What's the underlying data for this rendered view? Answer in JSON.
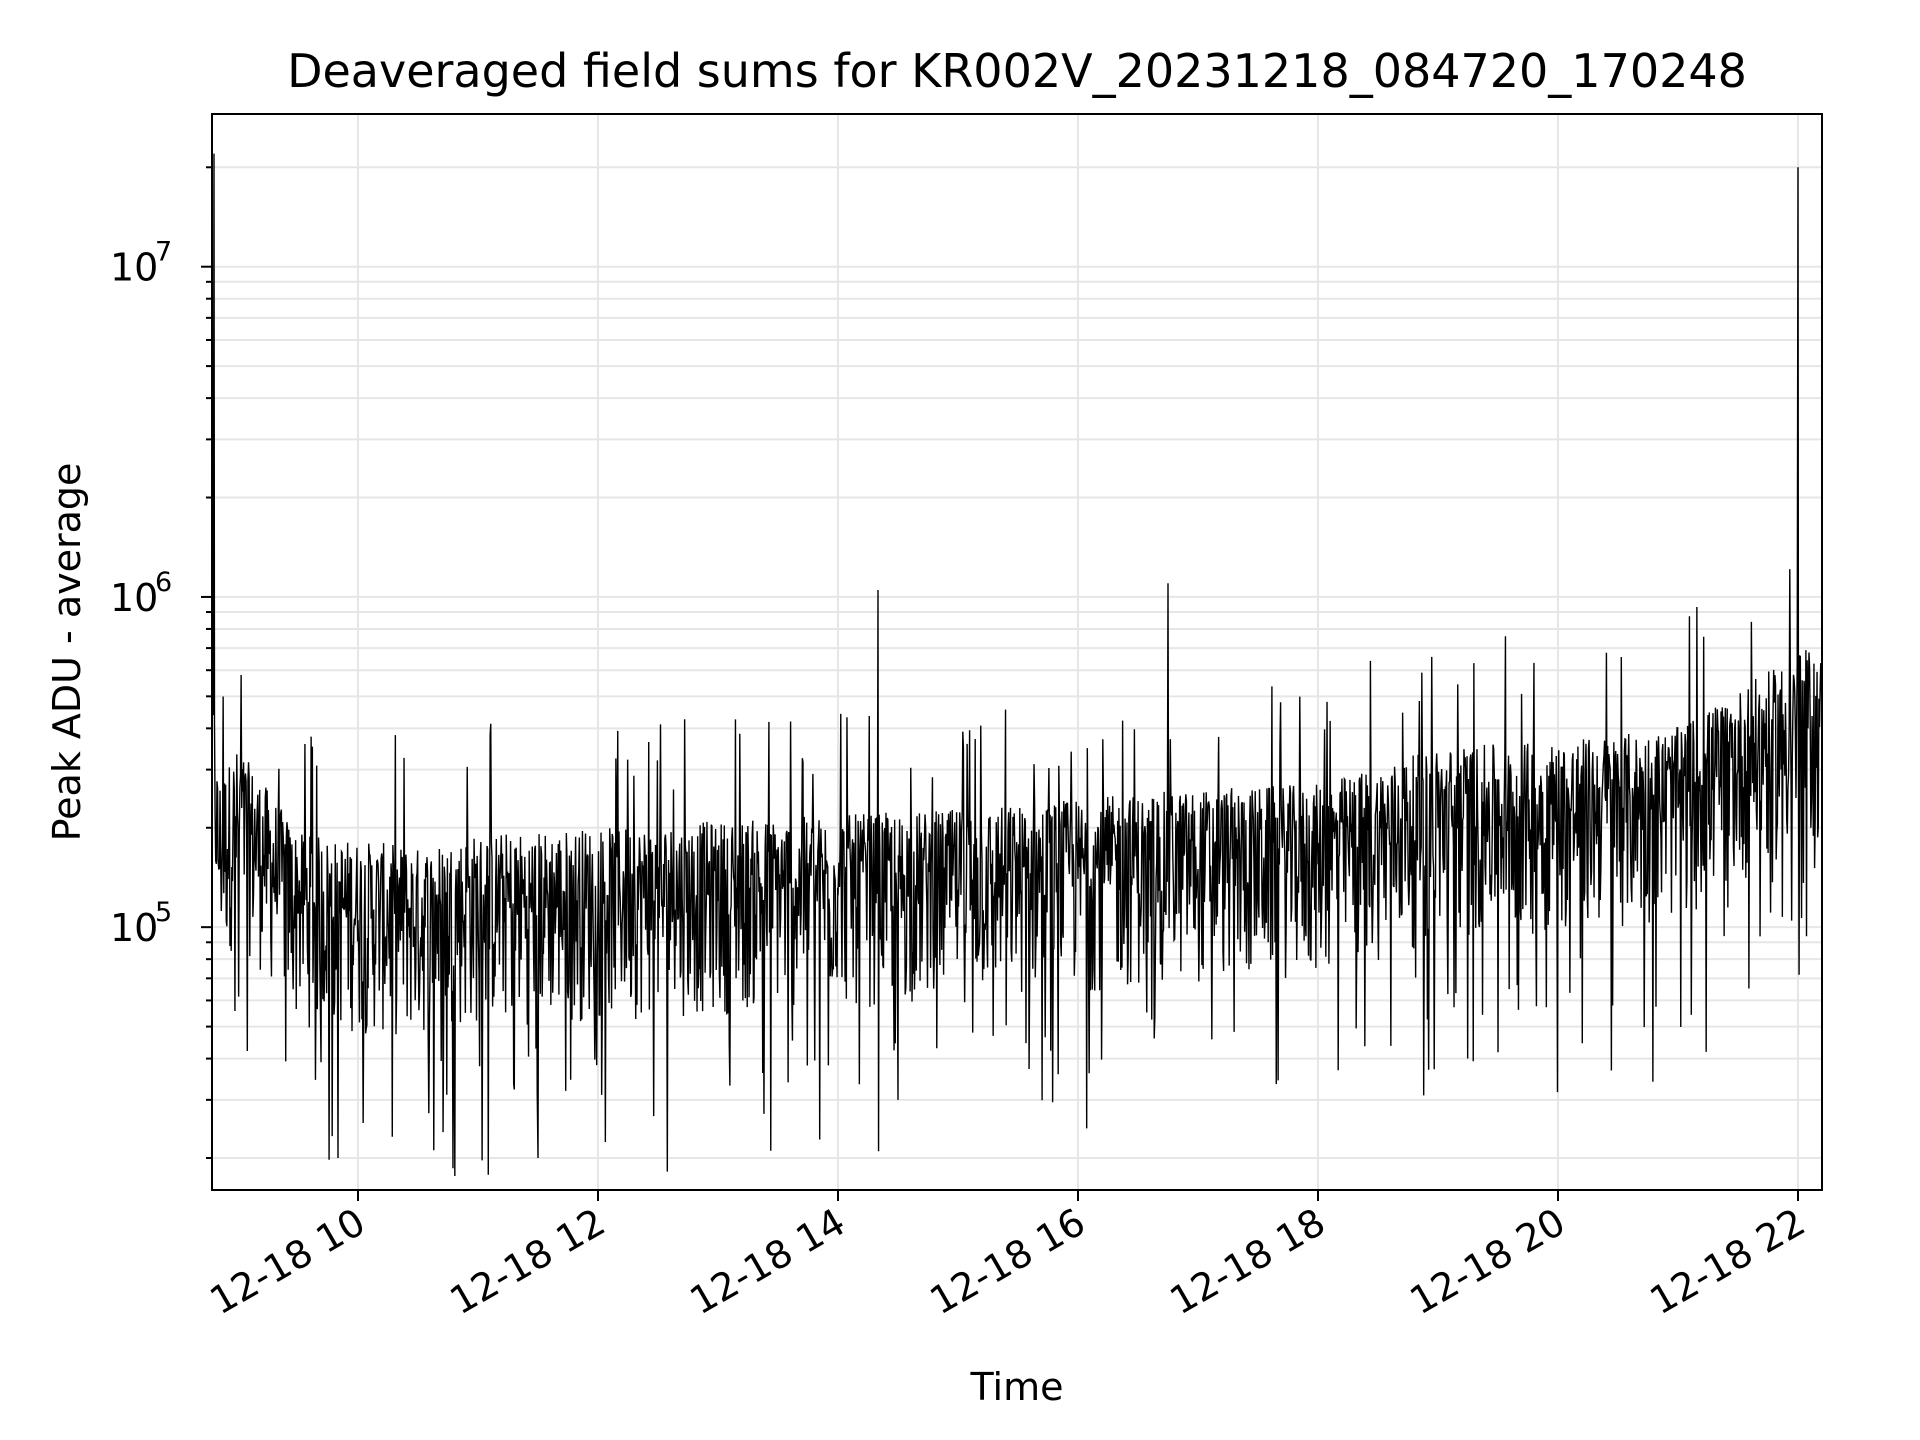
{
  "chart_data": {
    "type": "line",
    "title": "Deaveraged field sums for KR002V_20231218_084720_170248",
    "xlabel": "Time",
    "ylabel": "Peak ADU - average",
    "x_ticks": [
      "12-18 10",
      "12-18 12",
      "12-18 14",
      "12-18 16",
      "12-18 18",
      "12-18 20",
      "12-18 22"
    ],
    "y_scale": "log",
    "y_ticks": [
      {
        "base": "10",
        "exp": "5",
        "value": 100000
      },
      {
        "base": "10",
        "exp": "6",
        "value": 1000000
      },
      {
        "base": "10",
        "exp": "7",
        "value": 10000000
      }
    ],
    "xlim": [
      "2023-12-18 08:47",
      "2023-12-18 22:12"
    ],
    "ylim": [
      16000,
      29000000
    ],
    "grid": true,
    "line_color": "#000000",
    "series": [
      {
        "points": [
          [
            "2023-12-18 08:47",
            400000
          ],
          [
            "2023-12-18 08:48",
            22000000
          ],
          [
            "2023-12-18 08:50",
            160000
          ],
          [
            "2023-12-18 09:00",
            200000
          ],
          [
            "2023-12-18 09:15",
            150000
          ],
          [
            "2023-12-18 09:30",
            110000
          ],
          [
            "2023-12-18 09:50",
            20000
          ],
          [
            "2023-12-18 10:00",
            105000
          ],
          [
            "2023-12-18 10:30",
            100000
          ],
          [
            "2023-12-18 11:00",
            110000
          ],
          [
            "2023-12-18 11:30",
            20000
          ],
          [
            "2023-12-18 12:00",
            115000
          ],
          [
            "2023-12-18 13:00",
            120000
          ],
          [
            "2023-12-18 14:00",
            125000
          ],
          [
            "2023-12-18 14:20",
            1050000
          ],
          [
            "2023-12-18 14:30",
            30000
          ],
          [
            "2023-12-18 15:00",
            130000
          ],
          [
            "2023-12-18 16:00",
            140000
          ],
          [
            "2023-12-18 16:45",
            1100000
          ],
          [
            "2023-12-18 17:00",
            150000
          ],
          [
            "2023-12-18 18:00",
            155000
          ],
          [
            "2023-12-18 19:00",
            200000
          ],
          [
            "2023-12-18 20:00",
            210000
          ],
          [
            "2023-12-18 21:00",
            230000
          ],
          [
            "2023-12-18 21:30",
            300000
          ],
          [
            "2023-12-18 22:00",
            20000000
          ],
          [
            "2023-12-18 22:05",
            400000
          ],
          [
            "2023-12-18 22:12",
            380000
          ]
        ]
      }
    ]
  }
}
